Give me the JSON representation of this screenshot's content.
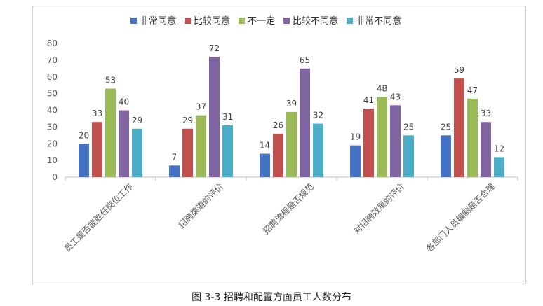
{
  "caption": "图 3-3 招聘和配置方面员工人数分布",
  "chart_data": {
    "type": "bar",
    "categories": [
      "员工是否能胜任岗位工作",
      "招聘渠道的评价",
      "招聘流程是否规范",
      "对招聘效果的评价",
      "各部门人员编制是否合理"
    ],
    "series": [
      {
        "name": "非常同意",
        "color": "#4472C4",
        "values": [
          20,
          7,
          14,
          19,
          25
        ]
      },
      {
        "name": "比较同意",
        "color": "#C0504D",
        "values": [
          33,
          29,
          26,
          41,
          59
        ]
      },
      {
        "name": "不一定",
        "color": "#9BBB59",
        "values": [
          53,
          37,
          39,
          48,
          47
        ]
      },
      {
        "name": "比较不同意",
        "color": "#8064A2",
        "values": [
          40,
          72,
          65,
          43,
          33
        ]
      },
      {
        "name": "非常不同意",
        "color": "#4BACC6",
        "values": [
          29,
          31,
          32,
          25,
          12
        ]
      }
    ],
    "ylim": [
      0,
      80
    ],
    "yticks": [
      0,
      10,
      20,
      30,
      40,
      50,
      60,
      70,
      80
    ],
    "grid": false,
    "legend": "top",
    "data_labels": true
  }
}
